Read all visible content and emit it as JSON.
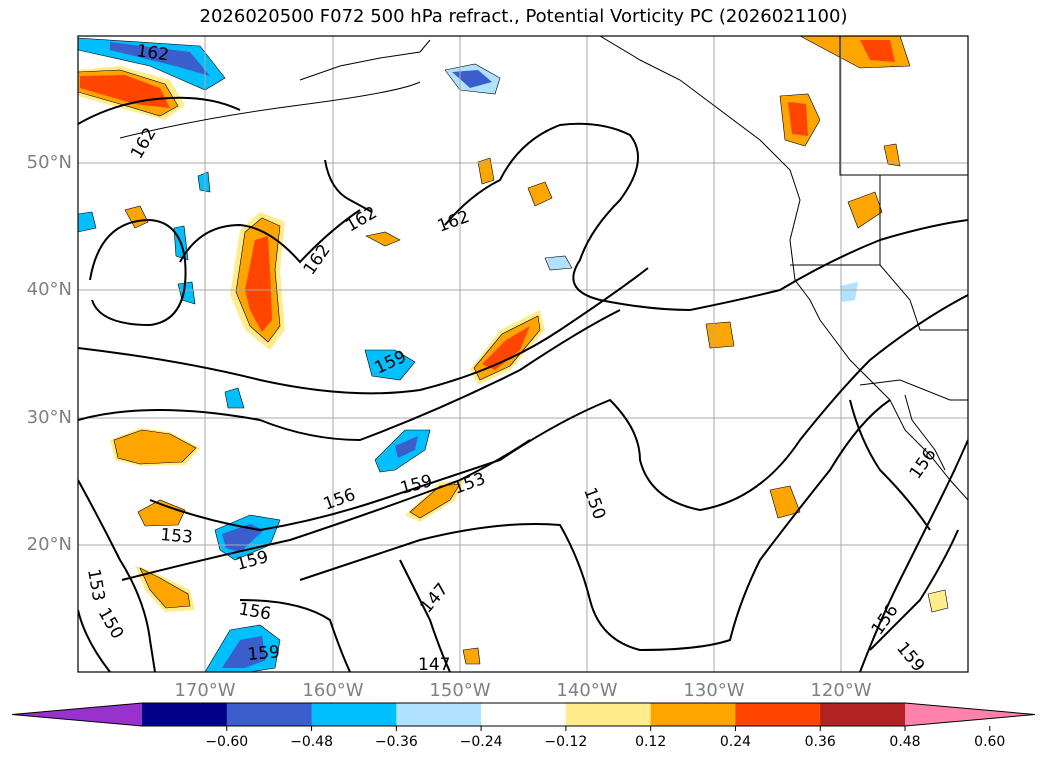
{
  "title": "2026020500 F072 500 hPa refract., Potential Vorticity PC (2026021100)",
  "lat_labels": [
    "50°N",
    "40°N",
    "30°N",
    "20°N"
  ],
  "lon_labels": [
    "170°W",
    "160°W",
    "150°W",
    "140°W",
    "130°W",
    "120°W"
  ],
  "contour_labels": [
    "162",
    "162",
    "162",
    "162",
    "162",
    "159",
    "159",
    "159",
    "159",
    "156",
    "156",
    "156",
    "153",
    "153",
    "153",
    "150",
    "150",
    "147",
    "147"
  ],
  "colorbar": {
    "colors": [
      "#9932cc",
      "#00008b",
      "#3a5fcd",
      "#00bfff",
      "#b0e2ff",
      "#ffffff",
      "#ffec8b",
      "#ffa500",
      "#ff4500",
      "#b22222",
      "#ff82ab"
    ],
    "ticks": [
      "−0.60",
      "−0.48",
      "−0.36",
      "−0.24",
      "−0.12",
      "0.12",
      "0.24",
      "0.36",
      "0.48",
      "0.60"
    ]
  }
}
